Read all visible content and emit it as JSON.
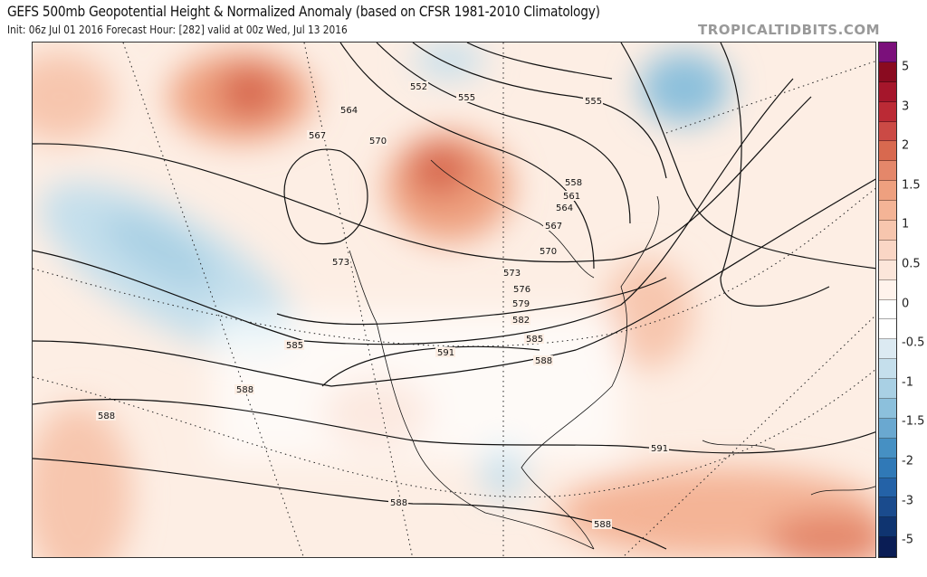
{
  "header": {
    "title": "GEFS 500mb Geopotential Height & Normalized Anomaly (based on CFSR 1981-2010 Climatology)",
    "subtitle": "Init: 06z Jul 01 2016   Forecast Hour: [282]   valid at 00z Wed, Jul 13 2016",
    "brand": "TROPICALTIDBITS.COM"
  },
  "colorbar": {
    "colors": [
      "#7b107b",
      "#8a0b20",
      "#a5162b",
      "#bb2a35",
      "#cb4a45",
      "#d8694f",
      "#e4876a",
      "#eea07f",
      "#f4b496",
      "#f7c6ae",
      "#fad6c5",
      "#fce6da",
      "#fff3ec",
      "#ffffff",
      "#ffffff",
      "#dceaf2",
      "#c5dfec",
      "#a9d0e4",
      "#8cc0dc",
      "#6aa8d0",
      "#4690c3",
      "#3079b7",
      "#2462a7",
      "#1a4b8d",
      "#0f3470",
      "#0a1d55"
    ],
    "labels": [
      "5",
      "3",
      "2",
      "1.5",
      "1",
      "0.5",
      "0",
      "-0.5",
      "-1",
      "-1.5",
      "-2",
      "-3",
      "-5"
    ]
  },
  "contour_labels": [
    "552",
    "555",
    "564",
    "567",
    "570",
    "555",
    "558",
    "561",
    "564",
    "567",
    "570",
    "573",
    "573",
    "576",
    "579",
    "582",
    "585",
    "591",
    "585",
    "588",
    "588",
    "588",
    "588",
    "591",
    "588"
  ]
}
